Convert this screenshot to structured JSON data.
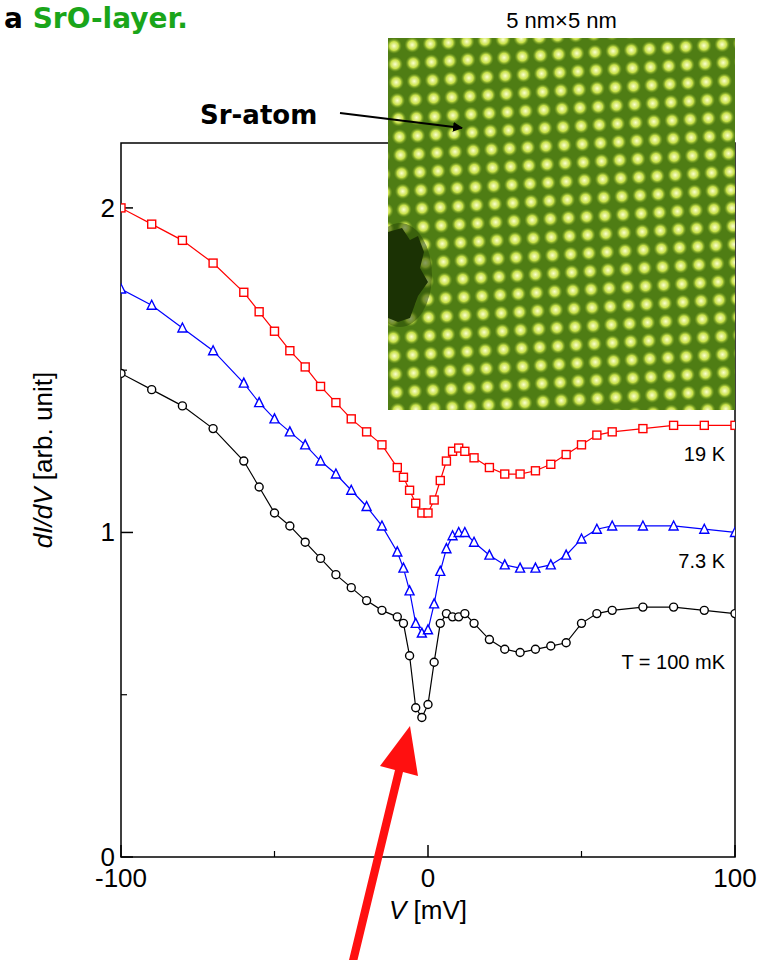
{
  "chart_data": {
    "type": "line",
    "title": "a SrO-layer.",
    "x_label": "V [mV]",
    "y_label": "dI/dV [arb. unit]",
    "inset_title": "5 nm×5 nm",
    "annotations": [
      "Sr-atom"
    ],
    "xlim": [
      -100,
      100
    ],
    "ylim": [
      0,
      2.2
    ],
    "xticks": [
      -100,
      0,
      100
    ],
    "yticks": [
      0,
      1,
      2
    ],
    "grid": false,
    "x": [
      -100,
      -90,
      -80,
      -70,
      -60,
      -55,
      -50,
      -45,
      -40,
      -35,
      -30,
      -25,
      -20,
      -15,
      -10,
      -8,
      -6,
      -4,
      -2,
      0,
      2,
      4,
      6,
      8,
      10,
      12,
      15,
      20,
      25,
      30,
      35,
      40,
      45,
      50,
      55,
      60,
      70,
      80,
      90,
      100
    ],
    "series": [
      {
        "name": "19 K",
        "color": "#ff0000",
        "marker": "square",
        "line_style": "solid",
        "values": [
          2.0,
          1.95,
          1.9,
          1.83,
          1.74,
          1.68,
          1.62,
          1.56,
          1.51,
          1.45,
          1.4,
          1.35,
          1.31,
          1.27,
          1.2,
          1.17,
          1.13,
          1.09,
          1.06,
          1.06,
          1.1,
          1.16,
          1.22,
          1.25,
          1.26,
          1.25,
          1.23,
          1.2,
          1.18,
          1.18,
          1.19,
          1.21,
          1.24,
          1.27,
          1.3,
          1.31,
          1.32,
          1.33,
          1.33,
          1.33
        ]
      },
      {
        "name": "7.3 K",
        "color": "#0000ff",
        "marker": "triangle",
        "line_style": "solid",
        "values": [
          1.75,
          1.7,
          1.63,
          1.56,
          1.46,
          1.4,
          1.35,
          1.31,
          1.27,
          1.22,
          1.18,
          1.13,
          1.08,
          1.02,
          0.94,
          0.89,
          0.82,
          0.72,
          0.69,
          0.7,
          0.78,
          0.88,
          0.95,
          0.99,
          1.0,
          1.0,
          0.97,
          0.93,
          0.9,
          0.89,
          0.89,
          0.9,
          0.93,
          0.98,
          1.01,
          1.02,
          1.02,
          1.02,
          1.01,
          1.0
        ]
      },
      {
        "name": "T = 100 mK",
        "color": "#000000",
        "marker": "circle",
        "line_style": "solid",
        "values": [
          1.49,
          1.44,
          1.39,
          1.32,
          1.22,
          1.14,
          1.06,
          1.02,
          0.97,
          0.92,
          0.87,
          0.83,
          0.79,
          0.76,
          0.74,
          0.72,
          0.62,
          0.46,
          0.43,
          0.47,
          0.6,
          0.72,
          0.75,
          0.74,
          0.74,
          0.75,
          0.72,
          0.67,
          0.64,
          0.63,
          0.64,
          0.65,
          0.66,
          0.72,
          0.75,
          0.76,
          0.77,
          0.77,
          0.76,
          0.75
        ]
      }
    ]
  }
}
